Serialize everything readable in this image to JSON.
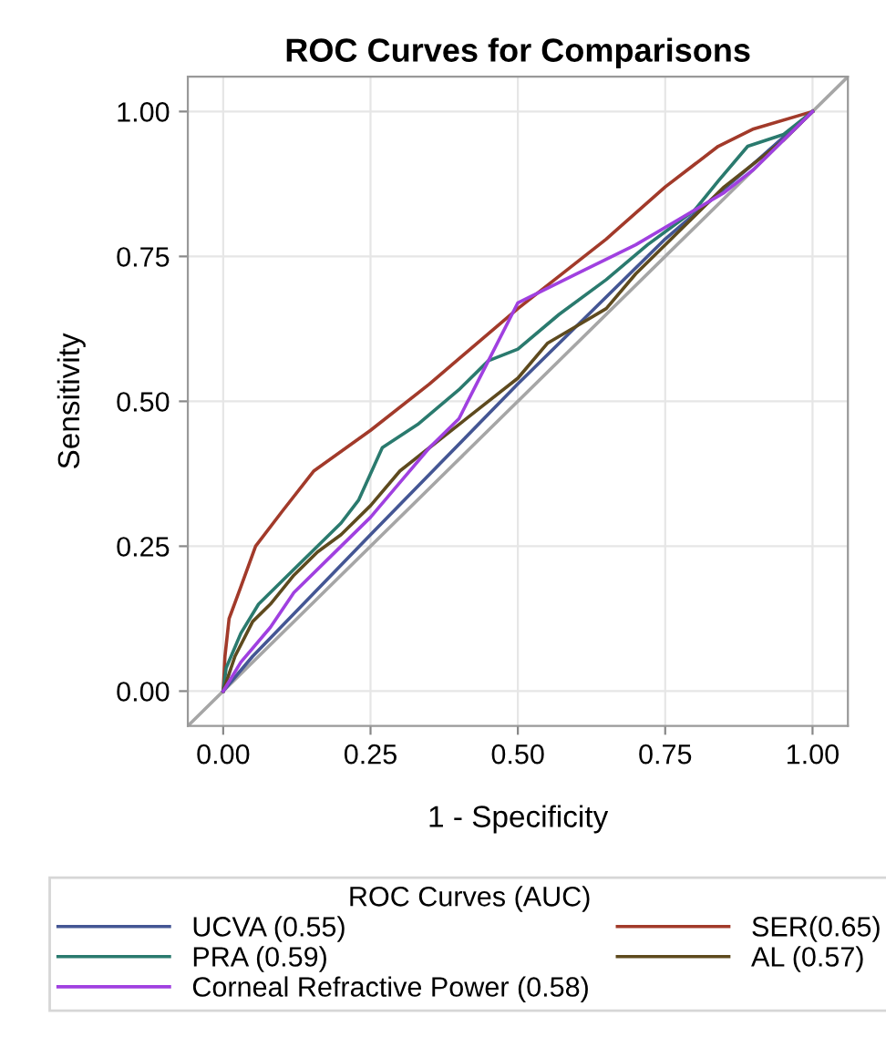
{
  "chart_data": {
    "type": "line",
    "title": "ROC Curves for Comparisons",
    "xlabel": "1 - Specificity",
    "ylabel": "Sensitivity",
    "legend_title": "ROC Curves (AUC)",
    "legend": "bottom",
    "grid": true,
    "line_style": "solid",
    "marker": "none",
    "xlim": [
      -0.06,
      1.06
    ],
    "ylim": [
      -0.06,
      1.06
    ],
    "xticks": [
      {
        "value": 0,
        "label": "0.00"
      },
      {
        "value": 0.25,
        "label": "0.25"
      },
      {
        "value": 0.5,
        "label": "0.50"
      },
      {
        "value": 0.75,
        "label": "0.75"
      },
      {
        "value": 1,
        "label": "1.00"
      }
    ],
    "yticks": [
      {
        "value": 0,
        "label": "0.00"
      },
      {
        "value": 0.25,
        "label": "0.25"
      },
      {
        "value": 0.5,
        "label": "0.50"
      },
      {
        "value": 0.75,
        "label": "0.75"
      },
      {
        "value": 1,
        "label": "1.00"
      }
    ],
    "series": [
      {
        "color": "#a6a6a6",
        "x": [
          -0.06,
          1.06
        ],
        "values": [
          -0.06,
          1.06
        ]
      },
      {
        "name": "UCVA (0.55)",
        "color": "#445694",
        "x": [
          0,
          0.05,
          0.25,
          0.5,
          0.75,
          0.9,
          1
        ],
        "values": [
          0,
          0.06,
          0.27,
          0.53,
          0.78,
          0.91,
          1
        ]
      },
      {
        "name": "SER(0.65)",
        "color": "#a23a2a",
        "x": [
          0,
          0.003,
          0.01,
          0.03,
          0.055,
          0.1,
          0.154,
          0.25,
          0.35,
          0.5,
          0.65,
          0.75,
          0.84,
          0.9,
          1
        ],
        "values": [
          0,
          0.06,
          0.125,
          0.18,
          0.25,
          0.31,
          0.38,
          0.45,
          0.53,
          0.66,
          0.78,
          0.87,
          0.94,
          0.97,
          1
        ]
      },
      {
        "name": "PRA (0.59)",
        "color": "#2a7a6e",
        "x": [
          0,
          0.005,
          0.03,
          0.06,
          0.1,
          0.15,
          0.2,
          0.23,
          0.27,
          0.33,
          0.4,
          0.45,
          0.5,
          0.57,
          0.65,
          0.72,
          0.8,
          0.84,
          0.89,
          0.95,
          1
        ],
        "values": [
          0,
          0.04,
          0.1,
          0.15,
          0.19,
          0.24,
          0.29,
          0.33,
          0.42,
          0.46,
          0.52,
          0.57,
          0.59,
          0.65,
          0.71,
          0.77,
          0.83,
          0.88,
          0.94,
          0.96,
          1
        ]
      },
      {
        "name": "AL (0.57)",
        "color": "#5e4a1e",
        "x": [
          0,
          0.02,
          0.05,
          0.08,
          0.12,
          0.16,
          0.2,
          0.25,
          0.3,
          0.35,
          0.4,
          0.45,
          0.5,
          0.55,
          0.6,
          0.65,
          0.7,
          0.75,
          0.8,
          0.85,
          0.9,
          0.95,
          1
        ],
        "values": [
          0,
          0.06,
          0.12,
          0.15,
          0.2,
          0.24,
          0.27,
          0.32,
          0.38,
          0.42,
          0.46,
          0.5,
          0.54,
          0.6,
          0.63,
          0.66,
          0.72,
          0.77,
          0.82,
          0.87,
          0.91,
          0.95,
          1
        ]
      },
      {
        "name": "Corneal Refractive Power (0.58)",
        "color": "#a040e0",
        "x": [
          0,
          0.03,
          0.08,
          0.12,
          0.18,
          0.25,
          0.3,
          0.35,
          0.4,
          0.45,
          0.5,
          0.6,
          0.7,
          0.8,
          0.85,
          0.9,
          0.95,
          1
        ],
        "values": [
          0,
          0.05,
          0.11,
          0.17,
          0.23,
          0.3,
          0.36,
          0.42,
          0.47,
          0.57,
          0.67,
          0.72,
          0.77,
          0.83,
          0.86,
          0.9,
          0.95,
          1
        ]
      }
    ]
  }
}
